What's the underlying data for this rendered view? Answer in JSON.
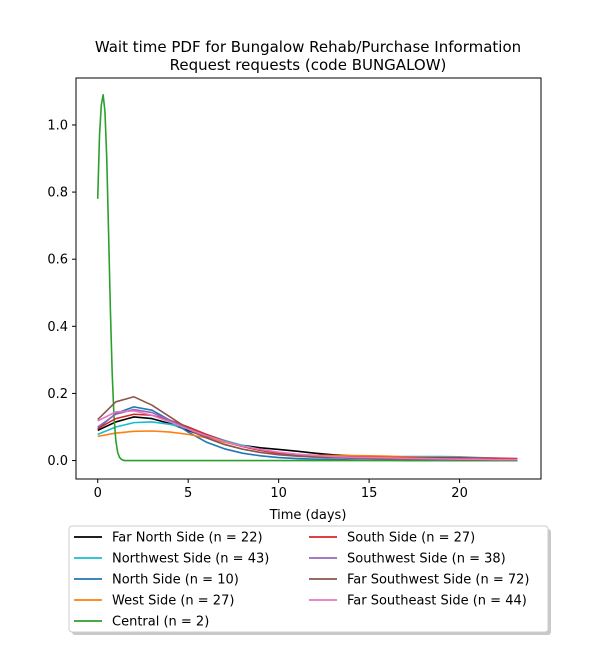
{
  "chart_data": {
    "type": "line",
    "title_lines": [
      "Wait time PDF for Bungalow Rehab/Purchase Information",
      "Request  requests (code BUNGALOW)"
    ],
    "xlabel": "Time (days)",
    "ylabel": "",
    "xlim": [
      -1.2,
      24.5
    ],
    "ylim": [
      -0.055,
      1.14
    ],
    "xticks": [
      0,
      5,
      10,
      15,
      20
    ],
    "yticks": [
      0.0,
      0.2,
      0.4,
      0.6,
      0.8,
      1.0
    ],
    "grid": false,
    "legend_position": "bottom, outside plot, two columns",
    "series": [
      {
        "name": "Far North Side (n = 22)",
        "color": "#000000",
        "x": [
          0,
          1,
          2,
          3,
          4,
          5,
          6,
          7,
          8,
          9,
          10,
          11,
          12,
          13,
          14,
          15,
          16,
          17,
          18,
          19,
          20,
          21,
          22,
          23.2
        ],
        "y": [
          0.09,
          0.115,
          0.13,
          0.125,
          0.11,
          0.09,
          0.07,
          0.055,
          0.045,
          0.038,
          0.033,
          0.028,
          0.022,
          0.017,
          0.014,
          0.012,
          0.011,
          0.01,
          0.009,
          0.008,
          0.007,
          0.006,
          0.005,
          0.004
        ]
      },
      {
        "name": "Northwest Side (n = 43)",
        "color": "#17becf",
        "x": [
          0,
          1,
          2,
          3,
          4,
          5,
          6,
          7,
          8,
          9,
          10,
          11,
          12,
          13,
          14,
          15,
          16,
          17,
          18,
          19,
          20,
          21,
          22,
          23.2
        ],
        "y": [
          0.078,
          0.1,
          0.113,
          0.115,
          0.108,
          0.095,
          0.078,
          0.06,
          0.045,
          0.033,
          0.024,
          0.018,
          0.014,
          0.012,
          0.011,
          0.011,
          0.011,
          0.012,
          0.012,
          0.012,
          0.011,
          0.009,
          0.007,
          0.005
        ]
      },
      {
        "name": "North Side (n = 10)",
        "color": "#1f77b4",
        "x": [
          0,
          1,
          2,
          3,
          4,
          5,
          6,
          7,
          8,
          9,
          10,
          11,
          12,
          13,
          14,
          15,
          16,
          17,
          18,
          19,
          20,
          21,
          22,
          23.2
        ],
        "y": [
          0.095,
          0.14,
          0.16,
          0.15,
          0.12,
          0.085,
          0.055,
          0.035,
          0.022,
          0.014,
          0.009,
          0.006,
          0.004,
          0.003,
          0.002,
          0.001,
          0.001,
          0.0,
          0.0,
          0.0,
          0.0,
          0.0,
          0.0,
          0.0
        ]
      },
      {
        "name": "West Side (n = 27)",
        "color": "#ff7f0e",
        "x": [
          0,
          1,
          2,
          3,
          4,
          5,
          6,
          7,
          8,
          9,
          10,
          11,
          12,
          13,
          14,
          15,
          16,
          17,
          18,
          19,
          20,
          21,
          22,
          23.2
        ],
        "y": [
          0.072,
          0.082,
          0.087,
          0.088,
          0.085,
          0.078,
          0.068,
          0.055,
          0.042,
          0.031,
          0.023,
          0.018,
          0.016,
          0.015,
          0.015,
          0.014,
          0.013,
          0.011,
          0.009,
          0.008,
          0.006,
          0.005,
          0.004,
          0.003
        ]
      },
      {
        "name": "Central (n = 2)",
        "color": "#2ca02c",
        "x": [
          0,
          0.1,
          0.2,
          0.3,
          0.4,
          0.5,
          0.6,
          0.7,
          0.8,
          0.9,
          1.0,
          1.1,
          1.2,
          1.3,
          1.4,
          1.5,
          1.7,
          2.0,
          3,
          5,
          10,
          15,
          20,
          23.2
        ],
        "y": [
          0.78,
          0.97,
          1.06,
          1.09,
          1.04,
          0.9,
          0.68,
          0.45,
          0.26,
          0.13,
          0.06,
          0.025,
          0.01,
          0.004,
          0.001,
          0.0,
          0.0,
          0.0,
          0.0,
          0.0,
          0.0,
          0.0,
          0.0,
          0.0
        ]
      },
      {
        "name": "South Side (n = 27)",
        "color": "#d62728",
        "x": [
          0,
          1,
          2,
          3,
          4,
          5,
          6,
          7,
          8,
          9,
          10,
          11,
          12,
          13,
          14,
          15,
          16,
          17,
          18,
          19,
          20,
          21,
          22,
          23.2
        ],
        "y": [
          0.095,
          0.125,
          0.138,
          0.135,
          0.12,
          0.1,
          0.078,
          0.058,
          0.042,
          0.03,
          0.022,
          0.017,
          0.014,
          0.012,
          0.011,
          0.01,
          0.009,
          0.009,
          0.008,
          0.008,
          0.008,
          0.007,
          0.007,
          0.006
        ]
      },
      {
        "name": "Southwest Side (n = 38)",
        "color": "#9467bd",
        "x": [
          0,
          1,
          2,
          3,
          4,
          5,
          6,
          7,
          8,
          9,
          10,
          11,
          12,
          13,
          14,
          15,
          16,
          17,
          18,
          19,
          20,
          21,
          22,
          23.2
        ],
        "y": [
          0.1,
          0.138,
          0.152,
          0.143,
          0.12,
          0.093,
          0.068,
          0.048,
          0.034,
          0.024,
          0.017,
          0.013,
          0.01,
          0.008,
          0.007,
          0.006,
          0.005,
          0.004,
          0.004,
          0.003,
          0.003,
          0.002,
          0.002,
          0.002
        ]
      },
      {
        "name": "Far Southwest Side (n = 72)",
        "color": "#8c564b",
        "x": [
          0,
          1,
          2,
          3,
          4,
          5,
          6,
          7,
          8,
          9,
          10,
          11,
          12,
          13,
          14,
          15,
          16,
          17,
          18,
          19,
          20,
          21,
          22,
          23.2
        ],
        "y": [
          0.122,
          0.175,
          0.19,
          0.165,
          0.13,
          0.095,
          0.068,
          0.048,
          0.034,
          0.024,
          0.018,
          0.014,
          0.011,
          0.009,
          0.008,
          0.007,
          0.006,
          0.005,
          0.004,
          0.004,
          0.003,
          0.003,
          0.002,
          0.002
        ]
      },
      {
        "name": "Far Southeast Side (n = 44)",
        "color": "#e377c2",
        "x": [
          0,
          1,
          2,
          3,
          4,
          5,
          6,
          7,
          8,
          9,
          10,
          11,
          12,
          13,
          14,
          15,
          16,
          17,
          18,
          19,
          20,
          21,
          22,
          23.2
        ],
        "y": [
          0.118,
          0.145,
          0.148,
          0.135,
          0.115,
          0.094,
          0.074,
          0.057,
          0.043,
          0.033,
          0.025,
          0.019,
          0.015,
          0.012,
          0.01,
          0.009,
          0.008,
          0.007,
          0.006,
          0.005,
          0.004,
          0.004,
          0.003,
          0.003
        ]
      }
    ]
  }
}
